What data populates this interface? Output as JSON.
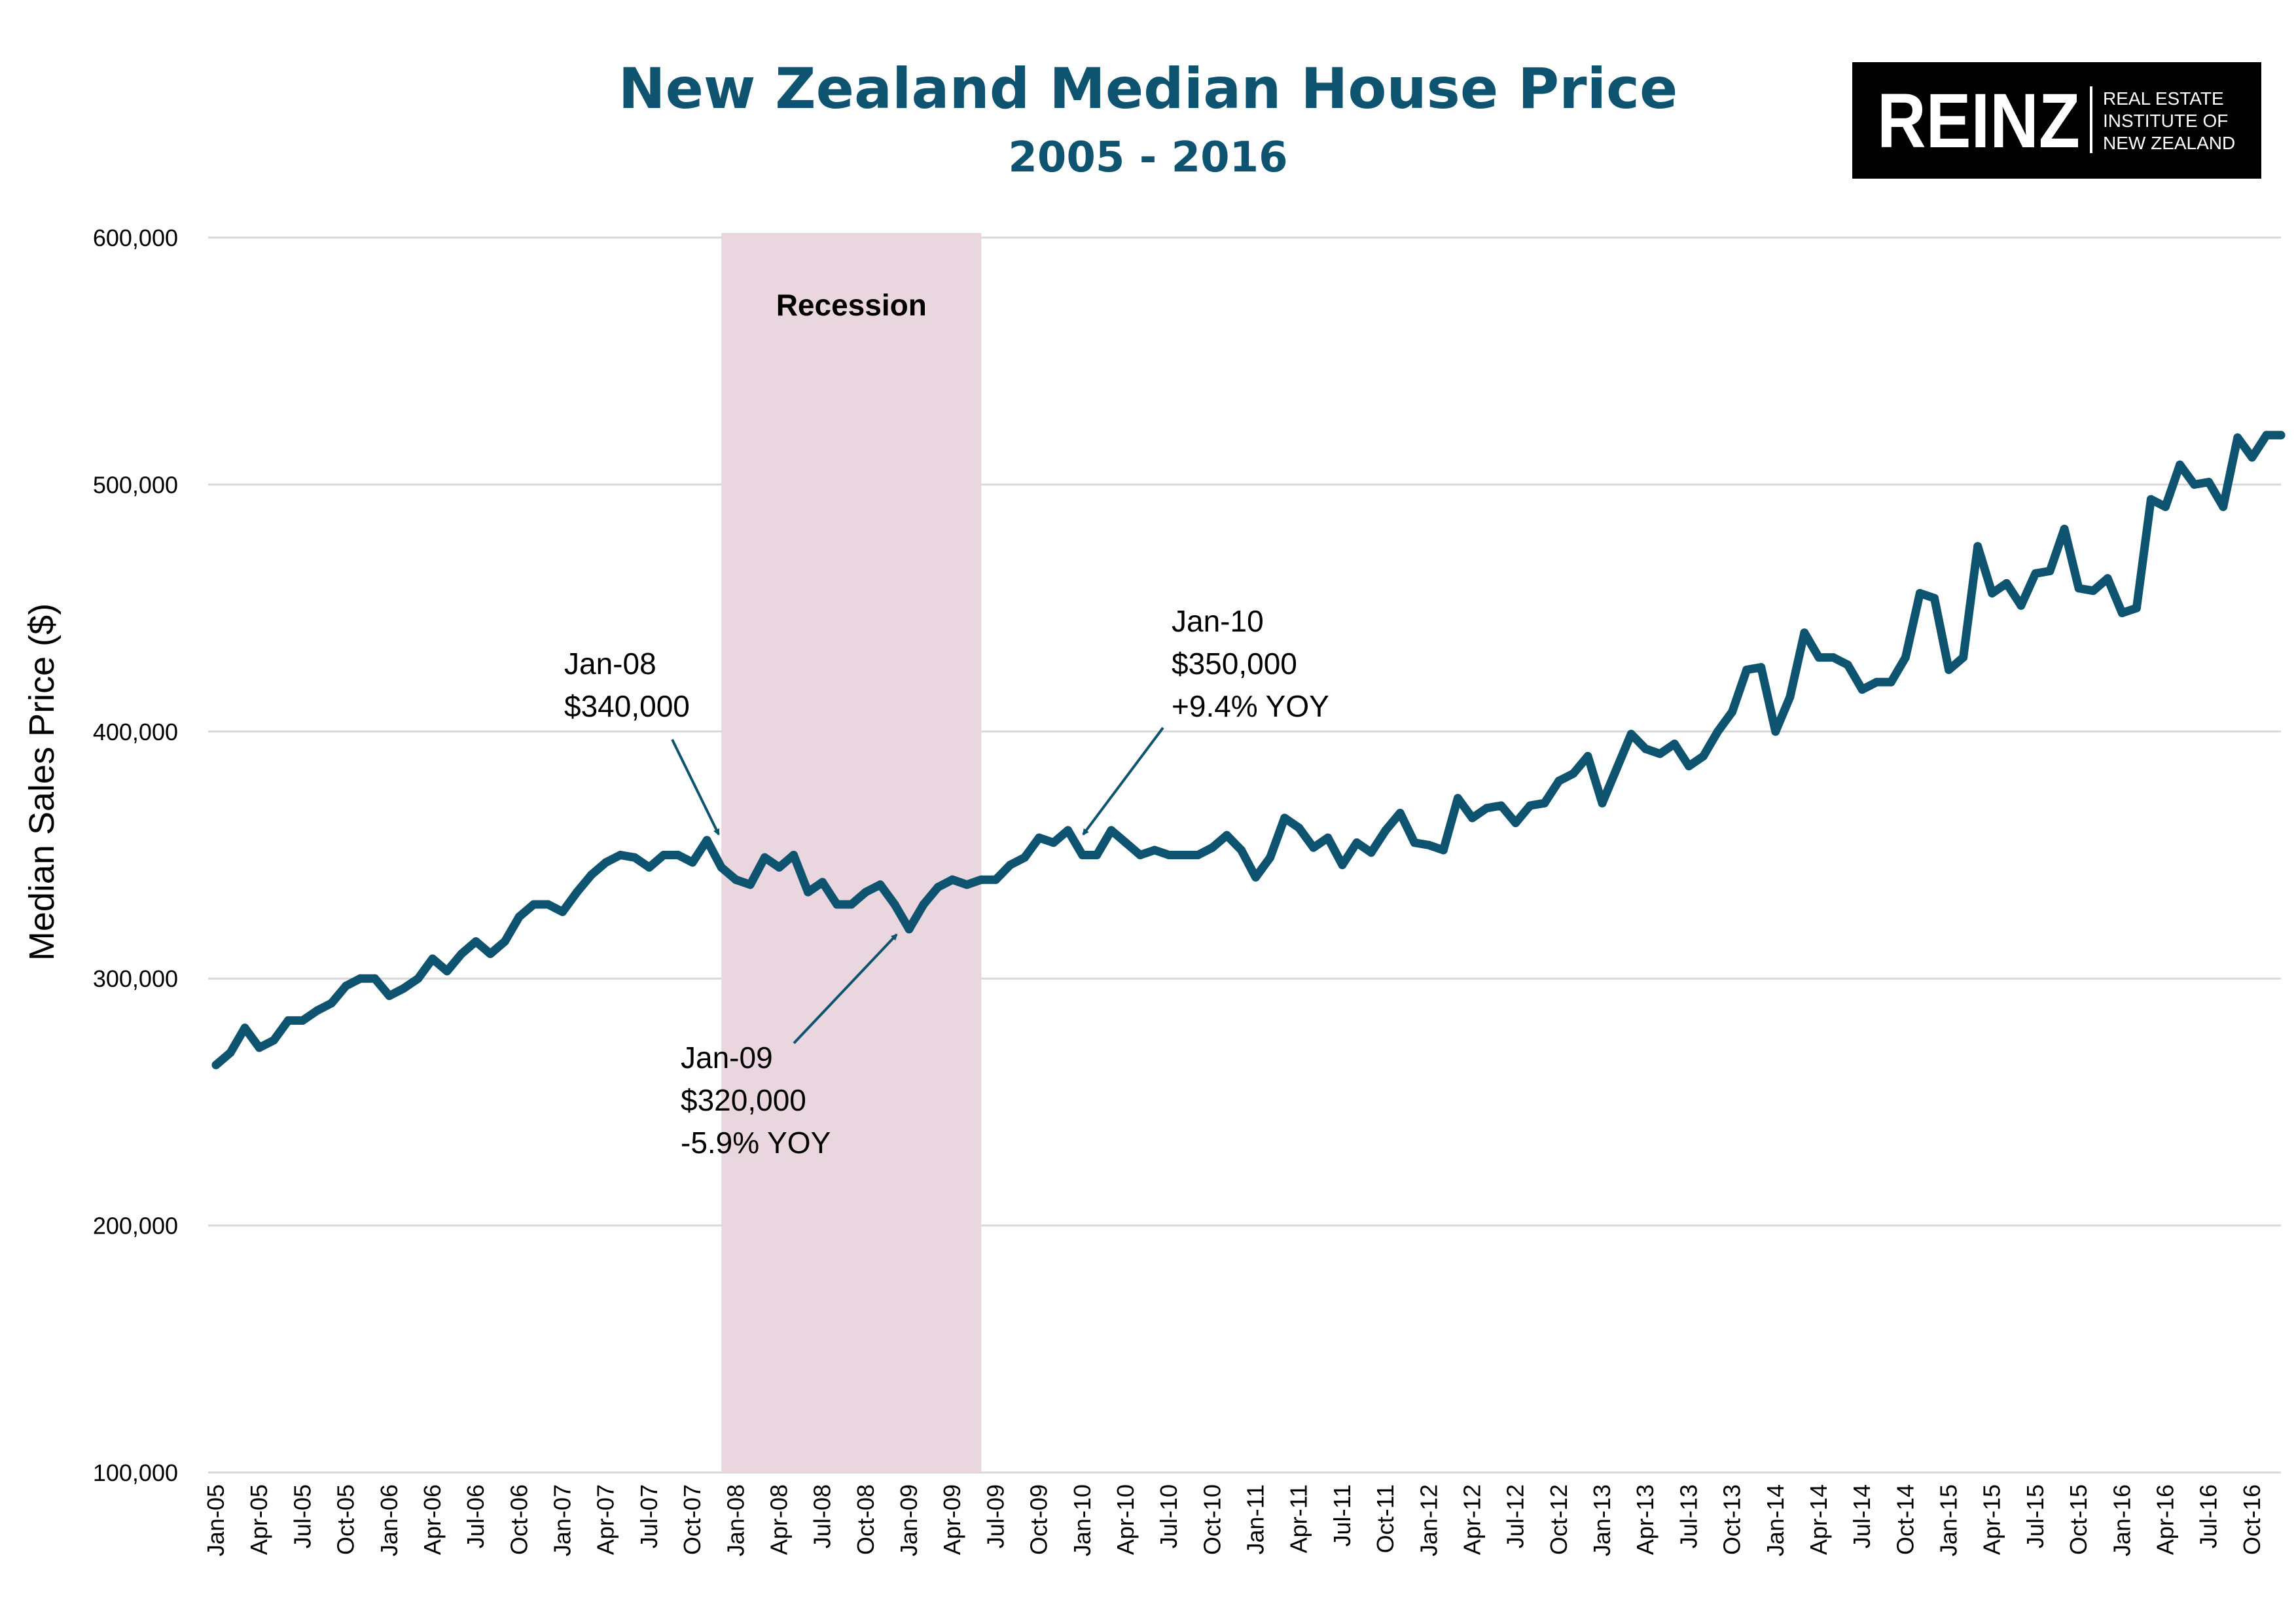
{
  "colors": {
    "line": "#0e5470",
    "title": "#0e5470",
    "recession": "#ead6de",
    "grid": "#d9d9d9",
    "logo_bg": "#000000",
    "logo_fg": "#ffffff"
  },
  "logo": {
    "name": "REINZ",
    "line1": "REAL ESTATE",
    "line2": "INSTITUTE OF",
    "line3": "NEW ZEALAND"
  },
  "chart_data": {
    "type": "line",
    "title": "New Zealand Median House Price",
    "subtitle": "2005 - 2016",
    "ylabel": "Median Sales Price ($)",
    "xlabel": "",
    "ylim": [
      100000,
      600000
    ],
    "yticks": [
      "100,000",
      "200,000",
      "300,000",
      "400,000",
      "500,000",
      "600,000"
    ],
    "ytick_values": [
      100000,
      200000,
      300000,
      400000,
      500000,
      600000
    ],
    "grid": "horizontal",
    "x_start": "Jan-05",
    "x_end": "Dec-16",
    "xtick_labels": [
      "Jan-05",
      "Apr-05",
      "Jul-05",
      "Oct-05",
      "Jan-06",
      "Apr-06",
      "Jul-06",
      "Oct-06",
      "Jan-07",
      "Apr-07",
      "Jul-07",
      "Oct-07",
      "Jan-08",
      "Apr-08",
      "Jul-08",
      "Oct-08",
      "Jan-09",
      "Apr-09",
      "Jul-09",
      "Oct-09",
      "Jan-10",
      "Apr-10",
      "Jul-10",
      "Oct-10",
      "Jan-11",
      "Apr-11",
      "Jul-11",
      "Oct-11",
      "Jan-12",
      "Apr-12",
      "Jul-12",
      "Oct-12",
      "Jan-13",
      "Apr-13",
      "Jul-13",
      "Oct-13",
      "Jan-14",
      "Apr-14",
      "Jul-14",
      "Oct-14",
      "Jan-15",
      "Apr-15",
      "Jul-15",
      "Oct-15",
      "Jan-16",
      "Apr-16",
      "Jul-16",
      "Oct-16"
    ],
    "series": [
      {
        "values": [
          265000,
          270000,
          280000,
          272000,
          275000,
          283000,
          283000,
          287000,
          290000,
          297000,
          300000,
          300000,
          293000,
          296000,
          300000,
          308000,
          303000,
          310000,
          315000,
          310000,
          315000,
          325000,
          330000,
          330000,
          327000,
          335000,
          342000,
          347000,
          350000,
          349000,
          345000,
          350000,
          350000,
          347000,
          356000,
          345000,
          340000,
          338000,
          349000,
          345000,
          350000,
          335000,
          339000,
          330000,
          330000,
          335000,
          338000,
          330000,
          320000,
          330000,
          337000,
          340000,
          338000,
          340000,
          340000,
          346000,
          349000,
          357000,
          355000,
          360000,
          350000,
          350000,
          360000,
          355000,
          350000,
          352000,
          350000,
          350000,
          350000,
          353000,
          358000,
          352000,
          341000,
          349000,
          365000,
          361000,
          353000,
          357000,
          346000,
          355000,
          351000,
          360000,
          367000,
          355000,
          354000,
          352000,
          373000,
          365000,
          369000,
          370000,
          363000,
          370000,
          371000,
          380000,
          383000,
          390000,
          371000,
          385000,
          399000,
          393000,
          391000,
          395000,
          386000,
          390000,
          400000,
          408000,
          425000,
          426000,
          400000,
          414000,
          440000,
          430000,
          430000,
          427000,
          417000,
          420000,
          420000,
          430000,
          456000,
          454000,
          425000,
          430000,
          475000,
          456000,
          460000,
          451000,
          464000,
          465000,
          482000,
          458000,
          457000,
          462000,
          448000,
          450000,
          494000,
          491000,
          508000,
          500000,
          501000,
          491000,
          519000,
          511000,
          520000,
          520000
        ]
      }
    ],
    "shaded_region": {
      "label": "Recession",
      "start": "Dec-07",
      "end": "Jun-09"
    },
    "annotations": [
      {
        "lines": [
          "Jan-08",
          "$340,000"
        ],
        "target": "Jan-08",
        "value": 340000
      },
      {
        "lines": [
          "Jan-09",
          "$320,000",
          "-5.9% YOY"
        ],
        "target": "Jan-09",
        "value": 320000
      },
      {
        "lines": [
          "Jan-10",
          "$350,000",
          "+9.4% YOY"
        ],
        "target": "Jan-10",
        "value": 350000
      }
    ]
  }
}
